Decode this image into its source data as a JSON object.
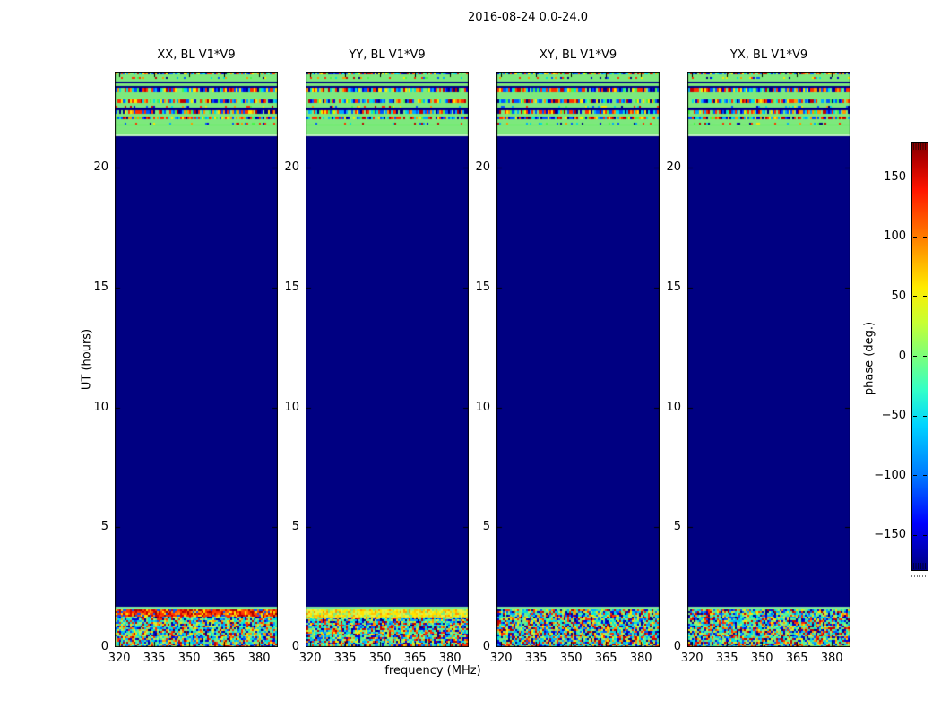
{
  "figure": {
    "suptitle": "2016-08-24 0.0-24.0"
  },
  "chart_data": {
    "type": "heatmap",
    "description": "Four phase-vs-frequency-vs-time waterfall panels (polarizations XX, YY, XY, YX) for baseline V1*V9, matplotlib jet colormap, plus a shared phase colorbar.",
    "panels": [
      {
        "title": "XX, BL V1*V9",
        "band_near_1p6h": "red"
      },
      {
        "title": "YY, BL V1*V9",
        "band_near_1p6h": "yellow"
      },
      {
        "title": "XY, BL V1*V9",
        "band_near_1p6h": "mixed"
      },
      {
        "title": "YX, BL V1*V9",
        "band_near_1p6h": "mixed"
      }
    ],
    "xlabel": "frequency (MHz)",
    "ylabel": "UT (hours)",
    "xticks": [
      320,
      335,
      350,
      365,
      380
    ],
    "yticks": [
      0,
      5,
      10,
      15,
      20
    ],
    "xlim": [
      318,
      388
    ],
    "ylim": [
      0,
      24
    ],
    "colorbar": {
      "label": "phase (deg.)",
      "ticks": [
        150,
        100,
        50,
        0,
        -50,
        -100,
        -150
      ],
      "lim": [
        -180,
        180
      ],
      "colormap": "jet"
    },
    "content": {
      "solid_region": {
        "hours": [
          1.7,
          21.3
        ],
        "phase_deg": -180,
        "color": "#000082"
      },
      "top_band": {
        "hours": [
          21.3,
          24.0
        ],
        "description": "alternating rows: near-zero phase (light green), random-phase speckle, and -180 deg (navy) lines"
      },
      "bottom_band": {
        "hours": [
          0.0,
          1.7
        ],
        "description": "random phase speckle noise; XX shows a red (~+150 deg) stripe and YY a yellow (~+50 deg) stripe near 1.5 h"
      }
    },
    "render_spec": {
      "colors": {
        "navy": "#000082",
        "green": "#7de87d",
        "bright_green": "#4cf54c",
        "pale_green": "#bdf4bd",
        "pale_line": "#7fe89a"
      },
      "palette_speckle": [
        "#000082",
        "#0000d8",
        "#0055ff",
        "#00aaff",
        "#00e0e0",
        "#49f549",
        "#7dea7d",
        "#ffe600",
        "#ff9800",
        "#ff3000",
        "#c00000",
        "#0055ff",
        "#7dea7d",
        "#ff3000"
      ],
      "palette_noise": [
        "#7dea7d",
        "#7dea7d",
        "#00e0e0",
        "#00aaff",
        "#0055ff",
        "#0000d8",
        "#000082",
        "#b8f258",
        "#ffe600",
        "#ff9800",
        "#ff3000",
        "#c00000",
        "#49f5a0",
        "#00e0e0"
      ],
      "palette_red": [
        "#c80000",
        "#ff3000",
        "#ff3000",
        "#d80000",
        "#ff6a00",
        "#ff9800",
        "#a00000",
        "#ff4500",
        "#ffe600",
        "#0055ff"
      ],
      "palette_yellow": [
        "#ffe600",
        "#ffe600",
        "#f0f03c",
        "#b8f258",
        "#ffc400",
        "#7dea7d",
        "#ff9800",
        "#e8f542"
      ],
      "top_rows": [
        [
          0,
          3,
          "sp"
        ],
        [
          3,
          3,
          "g"
        ],
        [
          6,
          2,
          "sps"
        ],
        [
          8,
          3,
          "g"
        ],
        [
          11,
          2,
          "n"
        ],
        [
          13,
          3,
          "g"
        ],
        [
          16,
          2,
          "n"
        ],
        [
          18,
          5,
          "sp"
        ],
        [
          23,
          8,
          "g"
        ],
        [
          31,
          4,
          "sp"
        ],
        [
          35,
          3,
          "g"
        ],
        [
          38,
          2,
          "sps"
        ],
        [
          40,
          3,
          "n"
        ],
        [
          43,
          4,
          "sp"
        ],
        [
          47,
          3,
          "g"
        ],
        [
          50,
          3,
          "sp"
        ],
        [
          53,
          4,
          "g"
        ],
        [
          57,
          2,
          "sps"
        ],
        [
          59,
          1,
          "bg"
        ],
        [
          60,
          10,
          "g"
        ],
        [
          70,
          2,
          "pg"
        ]
      ],
      "pale_line_y": 597,
      "special_band": [
        600,
        9
      ],
      "noise_start": {
        "red": 608,
        "yellow": 609,
        "mixed": 600
      },
      "noise_end": 642
    }
  }
}
